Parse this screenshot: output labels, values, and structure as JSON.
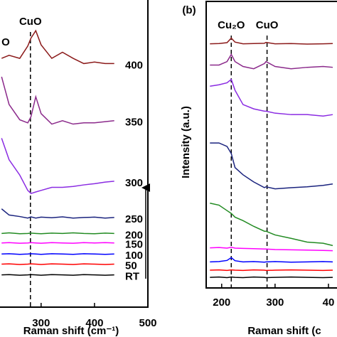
{
  "chart_data": [
    {
      "type": "line",
      "x": [
        226,
        240,
        260,
        275,
        281,
        290,
        300,
        320,
        340,
        360,
        380,
        400,
        420,
        437
      ],
      "xlim": [
        223,
        500
      ],
      "xticks": [
        300,
        400,
        500
      ],
      "ylim": [
        0,
        100
      ],
      "x_label": "Raman shift (cm⁻¹)",
      "reference_lines": [
        {
          "x": 280,
          "label": "CuO"
        }
      ],
      "annotations": [
        "O"
      ],
      "series": [
        {
          "name": "400",
          "color": "#8b1a1a",
          "values": [
            81,
            82,
            81,
            85,
            87.6,
            90,
            85.4,
            81,
            83,
            81,
            79.3,
            79.8,
            79.3,
            79.3
          ]
        },
        {
          "name": "350",
          "color": "#8b2a8b",
          "values": [
            75,
            66,
            61,
            60,
            62,
            68.5,
            63,
            59.6,
            60.7,
            59.6,
            60,
            60,
            60.4,
            60.7
          ]
        },
        {
          "name": "300",
          "color": "#8a2be2",
          "values": [
            55,
            48,
            43,
            38,
            37,
            37.5,
            38,
            39,
            39,
            39.3,
            39.8,
            40.2,
            40.7,
            41
          ]
        },
        {
          "name": "250",
          "color": "#1a237e",
          "values": [
            32,
            30,
            29.5,
            29,
            29.4,
            29,
            29.3,
            29.1,
            29.4,
            29,
            29.2,
            29.3,
            29,
            29.2
          ]
        },
        {
          "name": "200",
          "color": "#228b22",
          "values": [
            24,
            24.2,
            23.9,
            24,
            24.1,
            24,
            23.9,
            24.1,
            24,
            24.2,
            24,
            23.9,
            24.1,
            24
          ]
        },
        {
          "name": "150",
          "color": "#ff00ff",
          "values": [
            20.9,
            21,
            20.8,
            20.9,
            21,
            20.9,
            20.8,
            21,
            20.9,
            20.8,
            21,
            20.9,
            21,
            20.9
          ]
        },
        {
          "name": "100",
          "color": "#0000ff",
          "values": [
            17.3,
            17.4,
            17.2,
            17.3,
            17.4,
            17.3,
            17.2,
            17.4,
            17.3,
            17.2,
            17.4,
            17.3,
            17.2,
            17.3
          ]
        },
        {
          "name": "50",
          "color": "#ff0000",
          "values": [
            14,
            14.1,
            13.9,
            14,
            14.1,
            14,
            13.9,
            14.1,
            14,
            13.9,
            14.1,
            14,
            13.9,
            14
          ]
        },
        {
          "name": "RT",
          "color": "#000000",
          "values": [
            10.5,
            10.6,
            10.4,
            10.5,
            10.6,
            10.5,
            10.4,
            10.6,
            10.5,
            10.4,
            10.6,
            10.5,
            10.4,
            10.5
          ]
        }
      ]
    },
    {
      "type": "line",
      "x": [
        178,
        195,
        210,
        218,
        225,
        240,
        260,
        280,
        283,
        300,
        330,
        360,
        390,
        408
      ],
      "xlim": [
        171,
        412
      ],
      "xticks": [
        200,
        300,
        {
          "value": 400,
          "label": "40"
        }
      ],
      "ylim": [
        0,
        100
      ],
      "panel_label": "(b)",
      "x_label": "Raman shift (c",
      "y_label": "Intensity (a.u.)",
      "reference_lines": [
        {
          "x": 218,
          "label": "Cu₂O"
        },
        {
          "x": 285,
          "label": "CuO"
        }
      ],
      "series": [
        {
          "color": "#8b1a1a",
          "values": [
            85.2,
            85.3,
            85.6,
            87.2,
            85.8,
            85.2,
            85.3,
            85.4,
            85.7,
            85.2,
            85.3,
            85.1,
            85.2,
            85.3
          ]
        },
        {
          "color": "#8b2a8b",
          "values": [
            77.8,
            77.8,
            79,
            81.5,
            79,
            77.3,
            76.5,
            78.3,
            79,
            77.3,
            76.5,
            77,
            77.3,
            77
          ]
        },
        {
          "color": "#8a2be2",
          "values": [
            70.4,
            70.9,
            71.6,
            72.8,
            69,
            64,
            62.5,
            61.7,
            61.7,
            61,
            60.5,
            60.5,
            60,
            60.5
          ]
        },
        {
          "color": "#1a237e",
          "values": [
            50.6,
            50.6,
            49.4,
            46.9,
            42,
            39.5,
            37,
            35,
            35.3,
            34.6,
            35,
            35.3,
            35.8,
            36.3
          ]
        },
        {
          "color": "#228b22",
          "values": [
            29.6,
            28.9,
            27,
            26,
            24.7,
            23.5,
            21.5,
            19.8,
            19.8,
            18.5,
            17.3,
            16,
            15.6,
            14.8
          ]
        },
        {
          "color": "#ff00ff",
          "values": [
            14,
            14.1,
            13.9,
            14.2,
            13.9,
            13.8,
            13.7,
            13.6,
            13.6,
            13.4,
            13.3,
            13.2,
            13.1,
            13
          ]
        },
        {
          "color": "#0000ff",
          "values": [
            9.1,
            9.2,
            9.6,
            10.6,
            9.5,
            9.1,
            9.2,
            9,
            9.1,
            9.2,
            9,
            9.1,
            9.2,
            9.1
          ]
        },
        {
          "color": "#ff0000",
          "values": [
            6.2,
            6.3,
            6.1,
            6.3,
            6.2,
            6.1,
            6.3,
            6.2,
            6.1,
            6.2,
            6.3,
            6.2,
            6.1,
            6.2
          ]
        },
        {
          "color": "#000000",
          "values": [
            3.7,
            3.8,
            3.6,
            3.8,
            3.7,
            3.6,
            3.8,
            3.7,
            3.6,
            3.7,
            3.8,
            3.7,
            3.6,
            3.7
          ]
        }
      ]
    }
  ]
}
